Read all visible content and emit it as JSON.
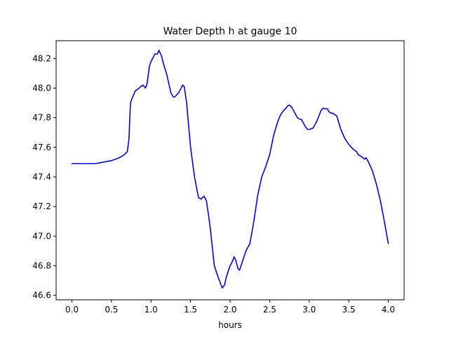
{
  "chart_data": {
    "type": "line",
    "title": "Water Depth h at gauge 10",
    "xlabel": "hours",
    "ylabel": "",
    "xlim": [
      -0.2,
      4.2
    ],
    "ylim": [
      46.57,
      48.32
    ],
    "xticks": [
      0.0,
      0.5,
      1.0,
      1.5,
      2.0,
      2.5,
      3.0,
      3.5,
      4.0
    ],
    "xtick_labels": [
      "0.0",
      "0.5",
      "1.0",
      "1.5",
      "2.0",
      "2.5",
      "3.0",
      "3.5",
      "4.0"
    ],
    "yticks": [
      46.6,
      46.8,
      47.0,
      47.2,
      47.4,
      47.6,
      47.8,
      48.0,
      48.2
    ],
    "ytick_labels": [
      "46.6",
      "46.8",
      "47.0",
      "47.2",
      "47.4",
      "47.6",
      "47.8",
      "48.0",
      "48.2"
    ],
    "grid": false,
    "series": [
      {
        "color": "#0000ff",
        "x": [
          0.0,
          0.1,
          0.2,
          0.3,
          0.35,
          0.4,
          0.5,
          0.55,
          0.6,
          0.65,
          0.7,
          0.72,
          0.74,
          0.76,
          0.8,
          0.85,
          0.88,
          0.9,
          0.93,
          0.95,
          0.98,
          1.0,
          1.05,
          1.08,
          1.1,
          1.13,
          1.16,
          1.2,
          1.25,
          1.28,
          1.3,
          1.35,
          1.38,
          1.4,
          1.42,
          1.45,
          1.5,
          1.55,
          1.6,
          1.63,
          1.65,
          1.67,
          1.7,
          1.73,
          1.75,
          1.8,
          1.85,
          1.9,
          1.93,
          1.95,
          1.98,
          2.0,
          2.03,
          2.05,
          2.07,
          2.1,
          2.12,
          2.15,
          2.2,
          2.25,
          2.3,
          2.35,
          2.4,
          2.45,
          2.5,
          2.55,
          2.6,
          2.63,
          2.65,
          2.68,
          2.7,
          2.73,
          2.75,
          2.78,
          2.8,
          2.83,
          2.85,
          2.88,
          2.9,
          2.95,
          2.98,
          3.0,
          3.05,
          3.1,
          3.15,
          3.18,
          3.2,
          3.23,
          3.25,
          3.28,
          3.3,
          3.35,
          3.4,
          3.45,
          3.5,
          3.55,
          3.6,
          3.62,
          3.65,
          3.68,
          3.7,
          3.72,
          3.75,
          3.8,
          3.85,
          3.9,
          3.95,
          4.0
        ],
        "y": [
          47.49,
          47.49,
          47.49,
          47.49,
          47.495,
          47.5,
          47.51,
          47.52,
          47.53,
          47.545,
          47.57,
          47.65,
          47.9,
          47.93,
          47.98,
          48.0,
          48.015,
          48.02,
          48.0,
          48.03,
          48.15,
          48.18,
          48.23,
          48.23,
          48.255,
          48.22,
          48.16,
          48.09,
          47.97,
          47.94,
          47.94,
          47.97,
          48.0,
          48.02,
          48.01,
          47.9,
          47.6,
          47.4,
          47.26,
          47.25,
          47.26,
          47.27,
          47.24,
          47.13,
          47.05,
          46.8,
          46.72,
          46.65,
          46.67,
          46.72,
          46.77,
          46.8,
          46.83,
          46.86,
          46.84,
          46.78,
          46.77,
          46.82,
          46.9,
          46.95,
          47.1,
          47.28,
          47.4,
          47.47,
          47.55,
          47.68,
          47.77,
          47.81,
          47.83,
          47.85,
          47.86,
          47.88,
          47.885,
          47.87,
          47.85,
          47.82,
          47.8,
          47.79,
          47.79,
          47.74,
          47.72,
          47.72,
          47.73,
          47.78,
          47.85,
          47.865,
          47.86,
          47.86,
          47.84,
          47.83,
          47.83,
          47.81,
          47.72,
          47.66,
          47.62,
          47.59,
          47.57,
          47.55,
          47.54,
          47.53,
          47.52,
          47.53,
          47.5,
          47.44,
          47.35,
          47.24,
          47.1,
          46.95
        ]
      }
    ]
  }
}
